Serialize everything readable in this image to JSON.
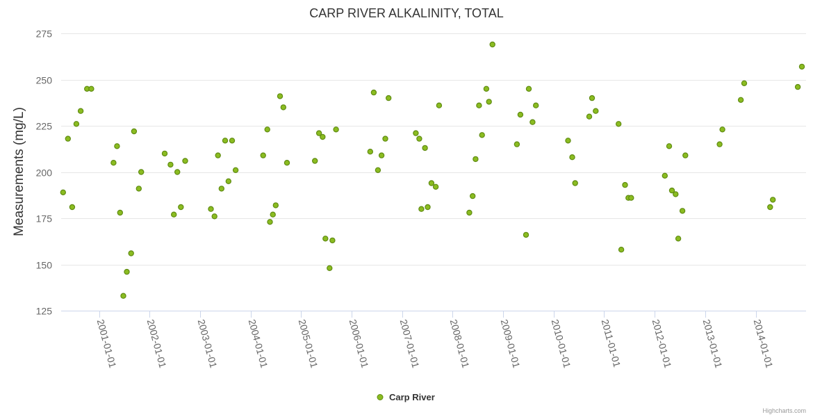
{
  "chart_data": {
    "type": "scatter",
    "title": "CARP RIVER ALKALINITY, TOTAL",
    "ylabel": "Measurements (mg/L)",
    "xlabel": "",
    "ylim": [
      125,
      275
    ],
    "yticks": [
      125,
      150,
      175,
      200,
      225,
      250,
      275
    ],
    "xlim": [
      "2000-04-01",
      "2014-12-31"
    ],
    "xtick_labels": [
      "2001-01-01",
      "2002-01-01",
      "2003-01-01",
      "2004-01-01",
      "2005-01-01",
      "2006-01-01",
      "2007-01-01",
      "2008-01-01",
      "2009-01-01",
      "2010-01-01",
      "2011-01-01",
      "2012-01-01",
      "2013-01-01",
      "2014-01-01"
    ],
    "grid": true,
    "legend": "bottom-center",
    "credits": "Highcharts.com",
    "series": [
      {
        "name": "Carp River",
        "color": "#8bbc21",
        "points": [
          [
            "2000-04-15",
            189
          ],
          [
            "2000-05-20",
            218
          ],
          [
            "2000-06-20",
            181
          ],
          [
            "2000-07-20",
            226
          ],
          [
            "2000-08-20",
            233
          ],
          [
            "2000-10-05",
            245
          ],
          [
            "2000-11-05",
            245
          ],
          [
            "2001-04-15",
            205
          ],
          [
            "2001-05-10",
            214
          ],
          [
            "2001-06-01",
            178
          ],
          [
            "2001-06-25",
            133
          ],
          [
            "2001-07-20",
            146
          ],
          [
            "2001-08-20",
            156
          ],
          [
            "2001-09-10",
            222
          ],
          [
            "2001-10-15",
            191
          ],
          [
            "2001-11-01",
            200
          ],
          [
            "2002-04-20",
            210
          ],
          [
            "2002-06-01",
            204
          ],
          [
            "2002-06-25",
            177
          ],
          [
            "2002-07-20",
            200
          ],
          [
            "2002-08-15",
            181
          ],
          [
            "2002-09-15",
            206
          ],
          [
            "2003-03-20",
            180
          ],
          [
            "2003-04-15",
            176
          ],
          [
            "2003-05-10",
            209
          ],
          [
            "2003-06-05",
            191
          ],
          [
            "2003-07-01",
            217
          ],
          [
            "2003-07-25",
            195
          ],
          [
            "2003-08-20",
            217
          ],
          [
            "2003-09-15",
            201
          ],
          [
            "2004-04-01",
            209
          ],
          [
            "2004-05-01",
            223
          ],
          [
            "2004-05-20",
            173
          ],
          [
            "2004-06-10",
            177
          ],
          [
            "2004-07-01",
            182
          ],
          [
            "2004-08-01",
            241
          ],
          [
            "2004-08-25",
            235
          ],
          [
            "2004-09-20",
            205
          ],
          [
            "2005-04-10",
            206
          ],
          [
            "2005-05-10",
            221
          ],
          [
            "2005-06-05",
            219
          ],
          [
            "2005-06-25",
            164
          ],
          [
            "2005-07-25",
            148
          ],
          [
            "2005-08-15",
            163
          ],
          [
            "2005-09-10",
            223
          ],
          [
            "2006-05-15",
            211
          ],
          [
            "2006-06-10",
            243
          ],
          [
            "2006-07-10",
            201
          ],
          [
            "2006-08-05",
            209
          ],
          [
            "2006-09-01",
            218
          ],
          [
            "2006-09-25",
            240
          ],
          [
            "2007-04-10",
            221
          ],
          [
            "2007-05-05",
            218
          ],
          [
            "2007-05-20",
            180
          ],
          [
            "2007-06-15",
            213
          ],
          [
            "2007-07-05",
            181
          ],
          [
            "2007-08-01",
            194
          ],
          [
            "2007-09-01",
            192
          ],
          [
            "2007-09-25",
            236
          ],
          [
            "2008-05-01",
            178
          ],
          [
            "2008-05-25",
            187
          ],
          [
            "2008-06-15",
            207
          ],
          [
            "2008-07-10",
            236
          ],
          [
            "2008-08-01",
            220
          ],
          [
            "2008-09-01",
            245
          ],
          [
            "2008-09-20",
            238
          ],
          [
            "2008-10-15",
            269
          ],
          [
            "2009-04-10",
            215
          ],
          [
            "2009-05-05",
            231
          ],
          [
            "2009-06-15",
            166
          ],
          [
            "2009-07-05",
            245
          ],
          [
            "2009-08-01",
            227
          ],
          [
            "2009-08-25",
            236
          ],
          [
            "2010-04-15",
            217
          ],
          [
            "2010-05-15",
            208
          ],
          [
            "2010-06-05",
            194
          ],
          [
            "2010-09-15",
            230
          ],
          [
            "2010-10-05",
            240
          ],
          [
            "2010-11-01",
            233
          ],
          [
            "2011-04-15",
            226
          ],
          [
            "2011-05-05",
            158
          ],
          [
            "2011-06-01",
            193
          ],
          [
            "2011-06-25",
            186
          ],
          [
            "2011-07-15",
            186
          ],
          [
            "2012-03-15",
            198
          ],
          [
            "2012-04-15",
            214
          ],
          [
            "2012-05-05",
            190
          ],
          [
            "2012-06-01",
            188
          ],
          [
            "2012-06-20",
            164
          ],
          [
            "2012-07-20",
            179
          ],
          [
            "2012-08-10",
            209
          ],
          [
            "2013-04-15",
            215
          ],
          [
            "2013-05-05",
            223
          ],
          [
            "2013-09-15",
            239
          ],
          [
            "2013-10-10",
            248
          ],
          [
            "2014-04-15",
            181
          ],
          [
            "2014-05-05",
            185
          ],
          [
            "2014-11-01",
            246
          ],
          [
            "2014-12-01",
            257
          ]
        ]
      }
    ]
  }
}
